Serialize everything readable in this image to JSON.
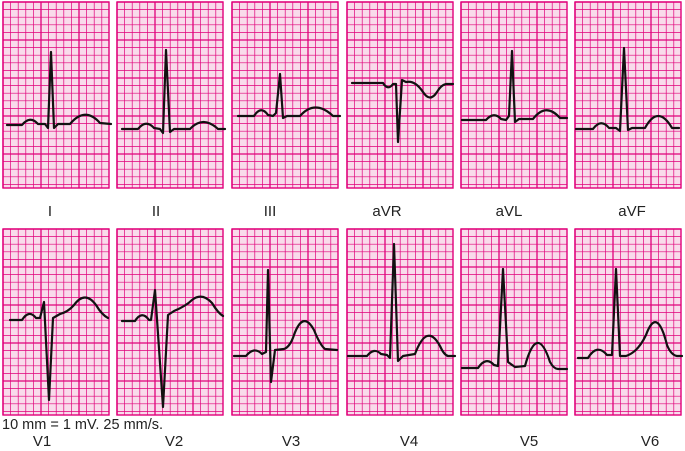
{
  "leads_row1": [
    "I",
    "II",
    "III",
    "aVR",
    "aVL",
    "aVF"
  ],
  "leads_row2": [
    "V1",
    "V2",
    "V3",
    "V4",
    "V5",
    "V6"
  ],
  "caption": "10 mm = 1 mV. 25 mm/s.",
  "colors": {
    "grid": "#e0007a",
    "paper": "#f9dbeb",
    "trace": "#111111",
    "background": "#ffffff"
  }
}
